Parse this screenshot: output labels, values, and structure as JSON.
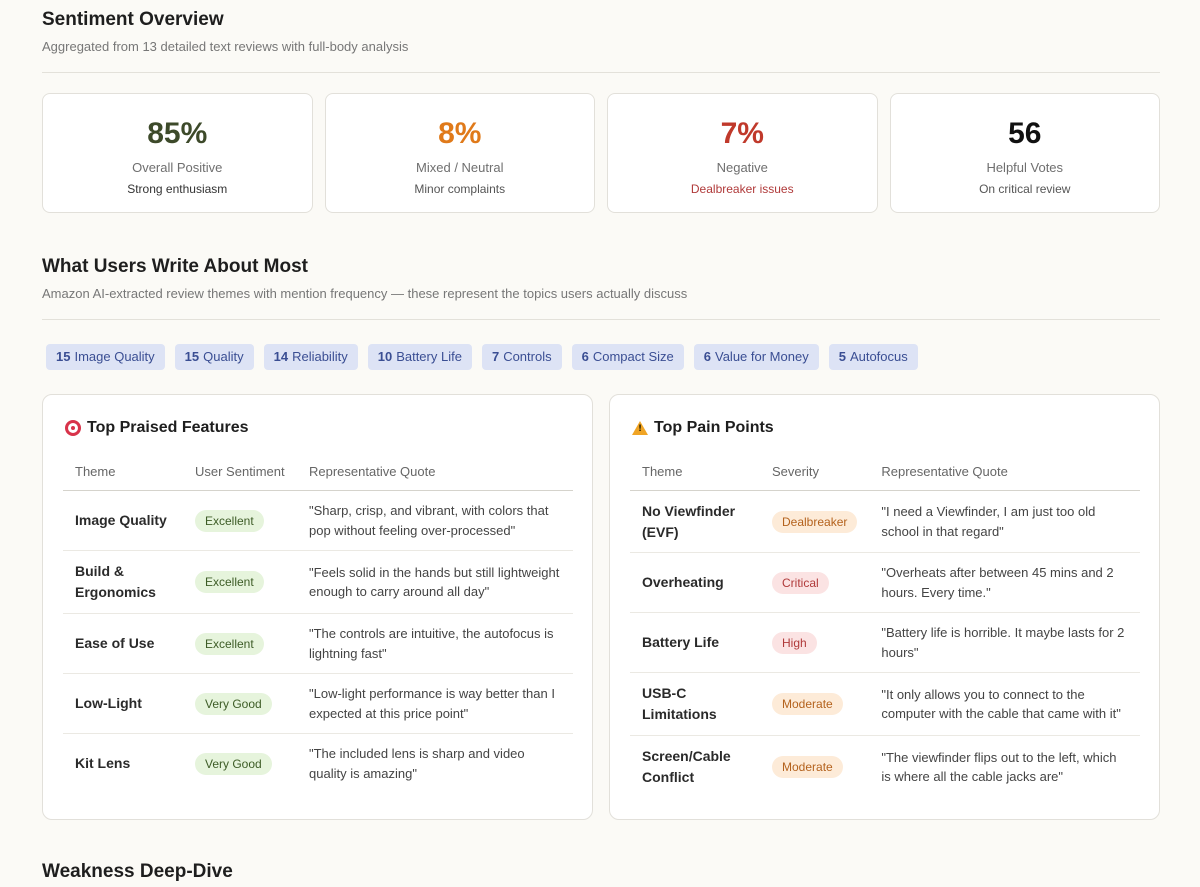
{
  "overview": {
    "title": "Sentiment Overview",
    "subtitle": "Aggregated from 13 detailed text reviews with full-body analysis",
    "cards": [
      {
        "value": "85%",
        "label": "Overall Positive",
        "note": "Strong enthusiasm",
        "color": "#3d4a2a",
        "note_color": "#333333"
      },
      {
        "value": "8%",
        "label": "Mixed / Neutral",
        "note": "Minor complaints",
        "color": "#e07a1a",
        "note_color": "#555555"
      },
      {
        "value": "7%",
        "label": "Negative",
        "note": "Dealbreaker issues",
        "color": "#c0392b",
        "note_color": "#b03a3a"
      },
      {
        "value": "56",
        "label": "Helpful Votes",
        "note": "On critical review",
        "color": "#111111",
        "note_color": "#555555"
      }
    ]
  },
  "themes": {
    "title": "What Users Write About Most",
    "subtitle": "Amazon AI-extracted review themes with mention frequency — these represent the topics users actually discuss",
    "chips": [
      {
        "count": "15",
        "label": "Image Quality"
      },
      {
        "count": "15",
        "label": "Quality"
      },
      {
        "count": "14",
        "label": "Reliability"
      },
      {
        "count": "10",
        "label": "Battery Life"
      },
      {
        "count": "7",
        "label": "Controls"
      },
      {
        "count": "6",
        "label": "Compact Size"
      },
      {
        "count": "6",
        "label": "Value for Money"
      },
      {
        "count": "5",
        "label": "Autofocus"
      }
    ]
  },
  "praised": {
    "title": "Top Praised Features",
    "icon": "target-icon",
    "headers": [
      "Theme",
      "User Sentiment",
      "Representative Quote"
    ],
    "rows": [
      {
        "theme": "Image Quality",
        "badge": "Excellent",
        "quote": "\"Sharp, crisp, and vibrant, with colors that pop without feeling over-processed\""
      },
      {
        "theme": "Build & Ergonomics",
        "badge": "Excellent",
        "quote": "\"Feels solid in the hands but still lightweight enough to carry around all day\""
      },
      {
        "theme": "Ease of Use",
        "badge": "Excellent",
        "quote": "\"The controls are intuitive, the autofocus is lightning fast\""
      },
      {
        "theme": "Low-Light",
        "badge": "Very Good",
        "quote": "\"Low-light performance is way better than I expected at this price point\""
      },
      {
        "theme": "Kit Lens",
        "badge": "Very Good",
        "quote": "\"The included lens is sharp and video quality is amazing\""
      }
    ]
  },
  "pain": {
    "title": "Top Pain Points",
    "icon": "warning-icon",
    "headers": [
      "Theme",
      "Severity",
      "Representative Quote"
    ],
    "rows": [
      {
        "theme": "No Viewfinder (EVF)",
        "badge": "Dealbreaker",
        "kind": "deal",
        "quote": "\"I need a Viewfinder, I am just too old school in that regard\""
      },
      {
        "theme": "Overheating",
        "badge": "Critical",
        "kind": "crit",
        "quote": "\"Overheats after between 45 mins and 2 hours. Every time.\""
      },
      {
        "theme": "Battery Life",
        "badge": "High",
        "kind": "high",
        "quote": "\"Battery life is horrible. It maybe lasts for 2 hours\""
      },
      {
        "theme": "USB-C Limitations",
        "badge": "Moderate",
        "kind": "mod",
        "quote": "\"It only allows you to connect to the computer with the cable that came with it\""
      },
      {
        "theme": "Screen/Cable Conflict",
        "badge": "Moderate",
        "kind": "mod",
        "quote": "\"The viewfinder flips out to the left, which is where all the cable jacks are\""
      }
    ]
  },
  "weakness": {
    "title": "Weakness Deep-Dive"
  }
}
